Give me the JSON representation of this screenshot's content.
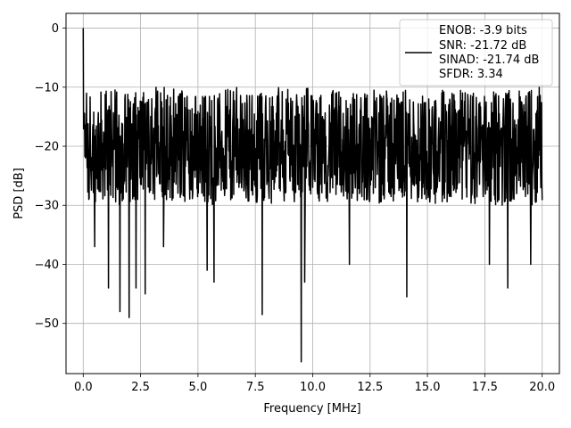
{
  "chart_data": {
    "type": "line",
    "title": "",
    "xlabel": "Frequency [MHz]",
    "ylabel": "PSD [dB]",
    "xlim": [
      -0.75,
      20.75
    ],
    "ylim": [
      -58.5,
      2.5
    ],
    "xticks": [
      0.0,
      2.5,
      5.0,
      7.5,
      10.0,
      12.5,
      15.0,
      17.5,
      20.0
    ],
    "xtick_labels": [
      "0.0",
      "2.5",
      "5.0",
      "7.5",
      "10.0",
      "12.5",
      "15.0",
      "17.5",
      "20.0"
    ],
    "yticks": [
      0,
      -10,
      -20,
      -30,
      -40,
      -50
    ],
    "ytick_labels": [
      "0",
      "−10",
      "−20",
      "−30",
      "−40",
      "−50"
    ],
    "grid": true,
    "legend_position": "top-right",
    "legend_lines": [
      "ENOB: -3.9 bits",
      "SNR: -21.72 dB",
      "SINAD: -21.74 dB",
      "SFDR: 3.34"
    ],
    "series": [
      {
        "color": "#000000",
        "x_range": [
          0.0,
          20.0
        ],
        "peak": {
          "x": 0.0,
          "y": 0.0
        },
        "noise_floor_mean": -20,
        "upper_envelope_approx": -10,
        "lower_envelope_approx": -30,
        "notable_dips": [
          {
            "x": 0.5,
            "y": -37
          },
          {
            "x": 1.1,
            "y": -44
          },
          {
            "x": 1.6,
            "y": -48
          },
          {
            "x": 2.0,
            "y": -49
          },
          {
            "x": 2.3,
            "y": -44
          },
          {
            "x": 2.7,
            "y": -45
          },
          {
            "x": 3.5,
            "y": -37
          },
          {
            "x": 5.4,
            "y": -41
          },
          {
            "x": 5.7,
            "y": -43
          },
          {
            "x": 7.8,
            "y": -48.5
          },
          {
            "x": 9.5,
            "y": -56.5
          },
          {
            "x": 9.65,
            "y": -43
          },
          {
            "x": 11.6,
            "y": -40
          },
          {
            "x": 14.1,
            "y": -45.5
          },
          {
            "x": 17.7,
            "y": -40
          },
          {
            "x": 18.5,
            "y": -44
          },
          {
            "x": 19.5,
            "y": -40
          }
        ]
      }
    ]
  }
}
